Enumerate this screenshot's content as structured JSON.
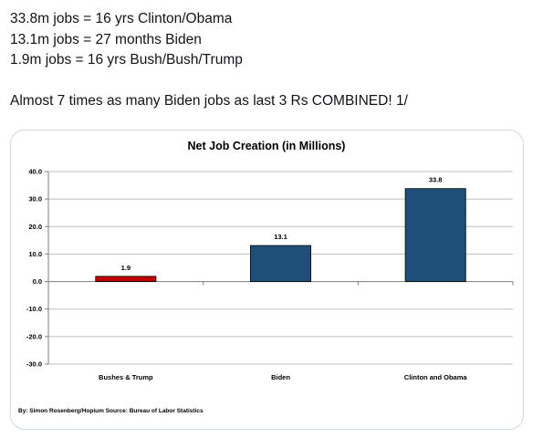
{
  "tweet": {
    "lines": [
      "33.8m jobs = 16 yrs Clinton/Obama",
      "13.1m jobs = 27 months Biden",
      "1.9m jobs = 16 yrs Bush/Bush/Trump",
      "Almost 7 times as many Biden jobs as last 3 Rs COMBINED! 1/"
    ]
  },
  "chart_data": {
    "type": "bar",
    "title": "Net Job Creation (in Millions)",
    "categories": [
      "Bushes & Trump",
      "Biden",
      "Clinton and Obama"
    ],
    "values": [
      1.9,
      13.1,
      33.8
    ],
    "value_labels": [
      "1.9",
      "13.1",
      "33.8"
    ],
    "bar_colors": [
      "#c00000",
      "#1f4e79",
      "#1f4e79"
    ],
    "ylim": [
      -30,
      40
    ],
    "yticks": [
      "-30.0",
      "-20.0",
      "-10.0",
      "0.0",
      "10.0",
      "20.0",
      "30.0",
      "40.0"
    ],
    "grid": true,
    "legend": "none",
    "source": "By: Simon Rosenberg/Hopium Source: Bureau of Labor Statistics"
  },
  "colors": {
    "text": "#0f1419",
    "card_border": "#cfd9de",
    "gridline": "#bfbfbf",
    "axis": "#7f7f7f"
  }
}
